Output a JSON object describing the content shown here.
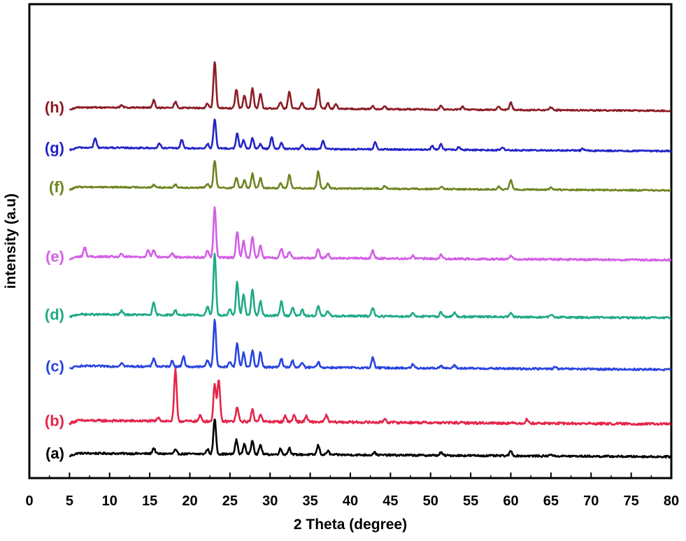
{
  "chart_data": {
    "type": "line",
    "xlabel": "2 Theta (degree)",
    "ylabel": "intensity (a.u)",
    "xlim": [
      0,
      80
    ],
    "x_ticks": [
      0,
      5,
      10,
      15,
      20,
      25,
      30,
      35,
      40,
      45,
      50,
      55,
      60,
      65,
      70,
      75,
      80
    ],
    "x_range_data": [
      5,
      80
    ],
    "y_ticks_shown": false,
    "grid": false,
    "legend": "inline-left",
    "series": [
      {
        "name": "(a)",
        "color": "#000000",
        "baseline": 0.05,
        "noise": 0.004,
        "peaks": [
          [
            15.5,
            0.012
          ],
          [
            18.2,
            0.008
          ],
          [
            22.2,
            0.01
          ],
          [
            23.1,
            0.075
          ],
          [
            25.8,
            0.03
          ],
          [
            26.8,
            0.022
          ],
          [
            27.8,
            0.03
          ],
          [
            28.8,
            0.02
          ],
          [
            31.3,
            0.012
          ],
          [
            32.4,
            0.014
          ],
          [
            36.0,
            0.02
          ],
          [
            37.2,
            0.008
          ],
          [
            43.0,
            0.006
          ],
          [
            51.3,
            0.006
          ],
          [
            60.0,
            0.01
          ],
          [
            65.0,
            0.004
          ]
        ]
      },
      {
        "name": "(b)",
        "color": "#e5254b",
        "baseline": 0.119,
        "noise": 0.005,
        "peaks": [
          [
            16.1,
            0.008
          ],
          [
            18.2,
            0.108
          ],
          [
            21.3,
            0.012
          ],
          [
            23.1,
            0.08
          ],
          [
            23.6,
            0.088
          ],
          [
            25.9,
            0.03
          ],
          [
            27.8,
            0.025
          ],
          [
            28.8,
            0.016
          ],
          [
            31.9,
            0.012
          ],
          [
            33.0,
            0.015
          ],
          [
            34.5,
            0.012
          ],
          [
            37.0,
            0.014
          ],
          [
            44.3,
            0.008
          ],
          [
            62.0,
            0.008
          ]
        ]
      },
      {
        "name": "(c)",
        "color": "#2a44e0",
        "baseline": 0.234,
        "noise": 0.004,
        "peaks": [
          [
            11.5,
            0.008
          ],
          [
            15.5,
            0.018
          ],
          [
            17.8,
            0.012
          ],
          [
            19.2,
            0.022
          ],
          [
            22.2,
            0.015
          ],
          [
            23.1,
            0.1
          ],
          [
            25.0,
            0.012
          ],
          [
            25.9,
            0.05
          ],
          [
            26.7,
            0.03
          ],
          [
            27.8,
            0.035
          ],
          [
            28.8,
            0.032
          ],
          [
            31.4,
            0.018
          ],
          [
            32.8,
            0.014
          ],
          [
            34.0,
            0.01
          ],
          [
            36.0,
            0.012
          ],
          [
            42.8,
            0.022
          ],
          [
            47.8,
            0.008
          ],
          [
            51.3,
            0.006
          ],
          [
            53.0,
            0.006
          ],
          [
            65.5,
            0.004
          ]
        ]
      },
      {
        "name": "(d)",
        "color": "#1faa86",
        "baseline": 0.343,
        "noise": 0.004,
        "peaks": [
          [
            11.5,
            0.008
          ],
          [
            15.5,
            0.025
          ],
          [
            18.2,
            0.01
          ],
          [
            22.2,
            0.02
          ],
          [
            23.1,
            0.13
          ],
          [
            25.0,
            0.012
          ],
          [
            25.9,
            0.07
          ],
          [
            26.7,
            0.045
          ],
          [
            27.8,
            0.055
          ],
          [
            28.8,
            0.03
          ],
          [
            31.4,
            0.03
          ],
          [
            32.8,
            0.018
          ],
          [
            34.0,
            0.012
          ],
          [
            36.0,
            0.02
          ],
          [
            37.2,
            0.01
          ],
          [
            42.8,
            0.018
          ],
          [
            47.8,
            0.008
          ],
          [
            51.3,
            0.01
          ],
          [
            53.0,
            0.008
          ],
          [
            60.0,
            0.008
          ],
          [
            65.0,
            0.006
          ]
        ]
      },
      {
        "name": "(e)",
        "color": "#d35fe6",
        "baseline": 0.465,
        "noise": 0.004,
        "peaks": [
          [
            6.9,
            0.02
          ],
          [
            11.5,
            0.006
          ],
          [
            14.8,
            0.016
          ],
          [
            15.5,
            0.015
          ],
          [
            17.8,
            0.008
          ],
          [
            22.2,
            0.014
          ],
          [
            23.1,
            0.105
          ],
          [
            25.9,
            0.055
          ],
          [
            26.7,
            0.035
          ],
          [
            27.8,
            0.045
          ],
          [
            28.8,
            0.025
          ],
          [
            31.4,
            0.02
          ],
          [
            32.4,
            0.014
          ],
          [
            36.0,
            0.02
          ],
          [
            37.2,
            0.01
          ],
          [
            42.8,
            0.016
          ],
          [
            47.8,
            0.006
          ],
          [
            51.3,
            0.008
          ],
          [
            60.0,
            0.008
          ]
        ]
      },
      {
        "name": "(f)",
        "color": "#6e8523",
        "baseline": 0.612,
        "noise": 0.003,
        "peaks": [
          [
            15.5,
            0.005
          ],
          [
            18.2,
            0.006
          ],
          [
            22.2,
            0.008
          ],
          [
            23.1,
            0.058
          ],
          [
            25.8,
            0.022
          ],
          [
            26.8,
            0.016
          ],
          [
            27.8,
            0.03
          ],
          [
            28.8,
            0.022
          ],
          [
            31.3,
            0.01
          ],
          [
            32.4,
            0.028
          ],
          [
            36.0,
            0.036
          ],
          [
            37.2,
            0.01
          ],
          [
            44.3,
            0.006
          ],
          [
            51.3,
            0.005
          ],
          [
            58.5,
            0.006
          ],
          [
            60.0,
            0.02
          ],
          [
            65.0,
            0.005
          ]
        ]
      },
      {
        "name": "(g)",
        "color": "#2424c7",
        "baseline": 0.695,
        "noise": 0.003,
        "peaks": [
          [
            8.2,
            0.02
          ],
          [
            16.2,
            0.01
          ],
          [
            19.0,
            0.018
          ],
          [
            22.2,
            0.01
          ],
          [
            23.1,
            0.062
          ],
          [
            25.9,
            0.032
          ],
          [
            26.7,
            0.018
          ],
          [
            27.8,
            0.022
          ],
          [
            28.8,
            0.01
          ],
          [
            30.2,
            0.025
          ],
          [
            31.4,
            0.012
          ],
          [
            34.0,
            0.008
          ],
          [
            36.6,
            0.018
          ],
          [
            43.1,
            0.015
          ],
          [
            50.2,
            0.008
          ],
          [
            51.3,
            0.012
          ],
          [
            53.5,
            0.006
          ],
          [
            59.0,
            0.006
          ],
          [
            69.0,
            0.004
          ]
        ]
      },
      {
        "name": "(h)",
        "color": "#8c1c24",
        "baseline": 0.78,
        "noise": 0.003,
        "peaks": [
          [
            11.5,
            0.005
          ],
          [
            15.5,
            0.016
          ],
          [
            18.2,
            0.013
          ],
          [
            22.2,
            0.01
          ],
          [
            23.1,
            0.098
          ],
          [
            25.8,
            0.04
          ],
          [
            26.8,
            0.028
          ],
          [
            27.8,
            0.043
          ],
          [
            28.8,
            0.032
          ],
          [
            31.3,
            0.014
          ],
          [
            32.4,
            0.036
          ],
          [
            34.0,
            0.012
          ],
          [
            36.0,
            0.042
          ],
          [
            37.2,
            0.012
          ],
          [
            38.2,
            0.01
          ],
          [
            42.8,
            0.006
          ],
          [
            44.3,
            0.006
          ],
          [
            51.3,
            0.008
          ],
          [
            54.0,
            0.006
          ],
          [
            58.5,
            0.008
          ],
          [
            60.0,
            0.016
          ],
          [
            65.0,
            0.006
          ]
        ]
      }
    ]
  }
}
